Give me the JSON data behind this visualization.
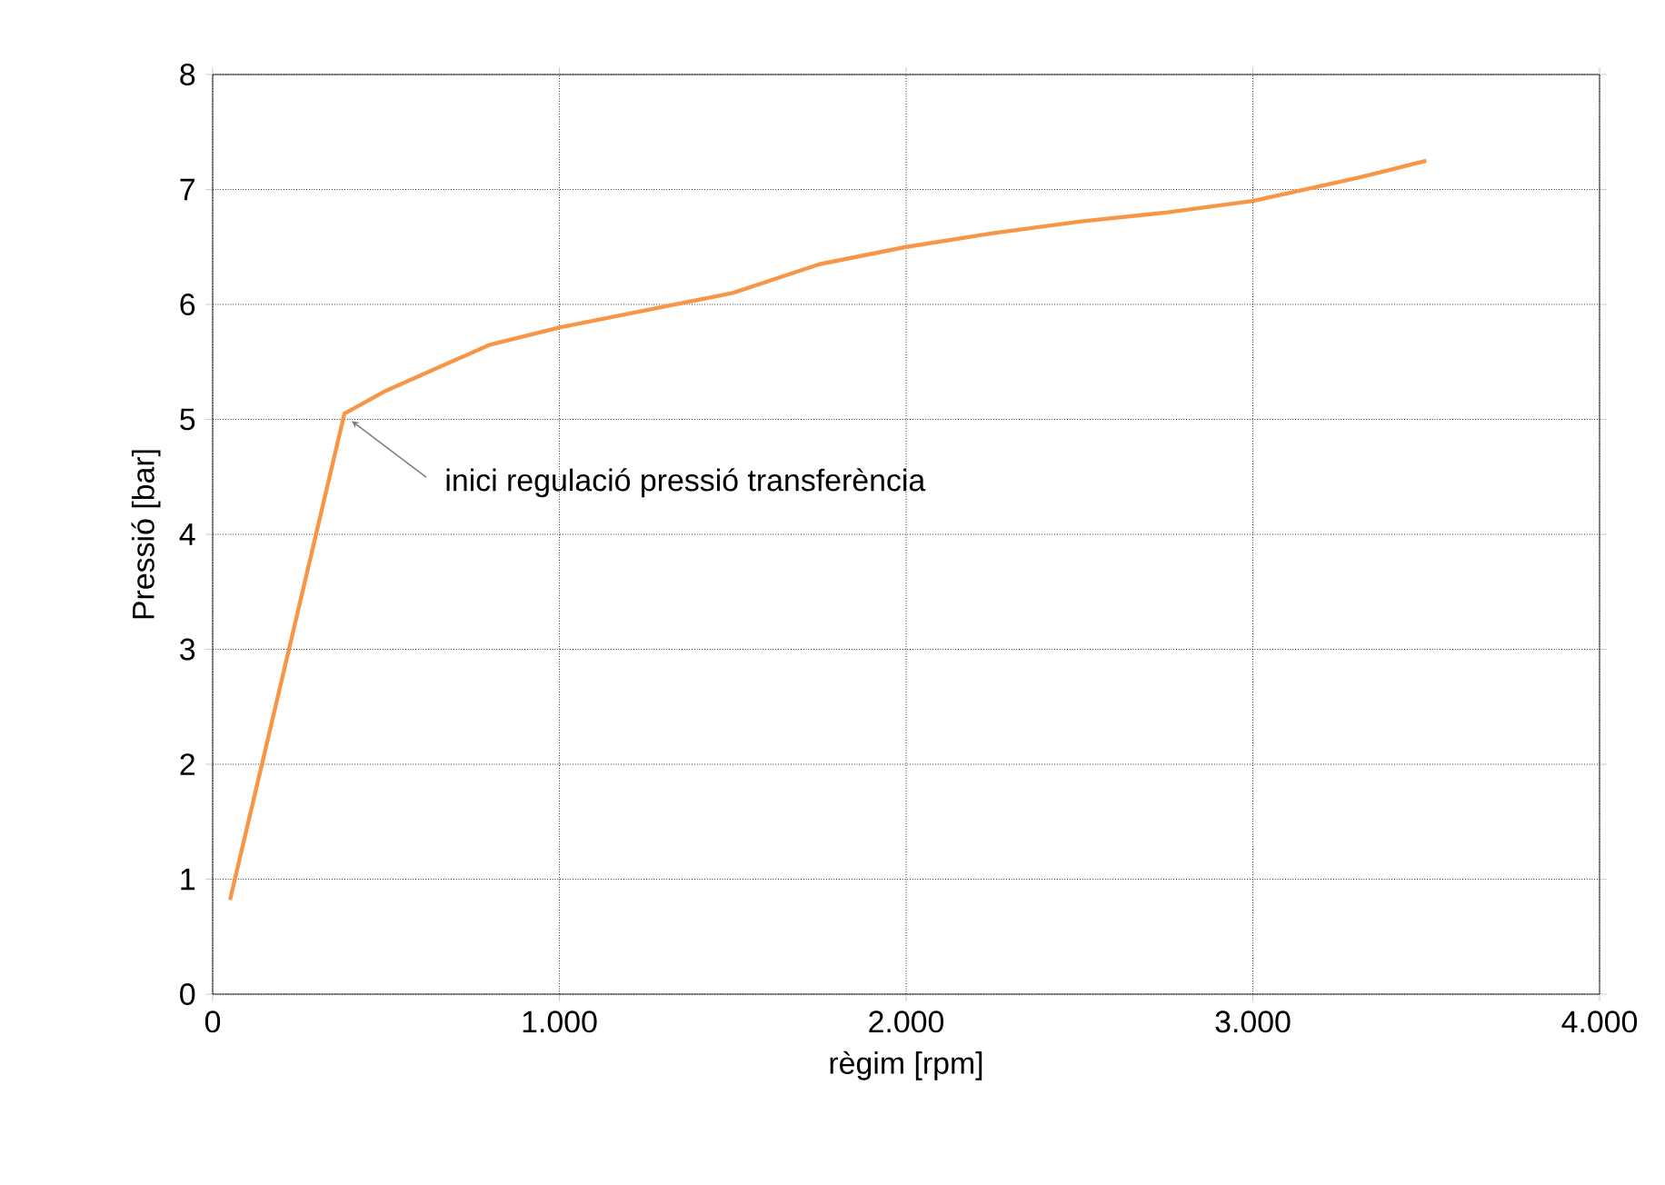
{
  "chart_data": {
    "type": "line",
    "xlabel": "règim [rpm]",
    "ylabel": "Pressió [bar]",
    "x": [
      50,
      380,
      500,
      650,
      800,
      1000,
      1250,
      1500,
      1750,
      2000,
      2250,
      2500,
      2750,
      3000,
      3150,
      3300,
      3500
    ],
    "series": [
      {
        "color": "#f79646",
        "values": [
          0.82,
          5.05,
          5.25,
          5.45,
          5.65,
          5.8,
          5.95,
          6.1,
          6.35,
          6.5,
          6.62,
          6.72,
          6.8,
          6.9,
          7.0,
          7.1,
          7.25
        ]
      }
    ],
    "xlim": [
      0,
      4000
    ],
    "ylim": [
      0,
      8
    ],
    "xticks": [
      0,
      {
        "value": 1000,
        "label": "1.000"
      },
      {
        "value": 2000,
        "label": "2.000"
      },
      {
        "value": 3000,
        "label": "3.000"
      },
      {
        "value": 4000,
        "label": "4.000"
      }
    ],
    "yticks": [
      0,
      1,
      2,
      3,
      4,
      5,
      6,
      7,
      8
    ],
    "grid": true,
    "marker": "none",
    "line_style": "solid",
    "annotations": [
      {
        "text": "inici regulació pressió transferència",
        "x": 380,
        "y": 5.05
      }
    ]
  }
}
